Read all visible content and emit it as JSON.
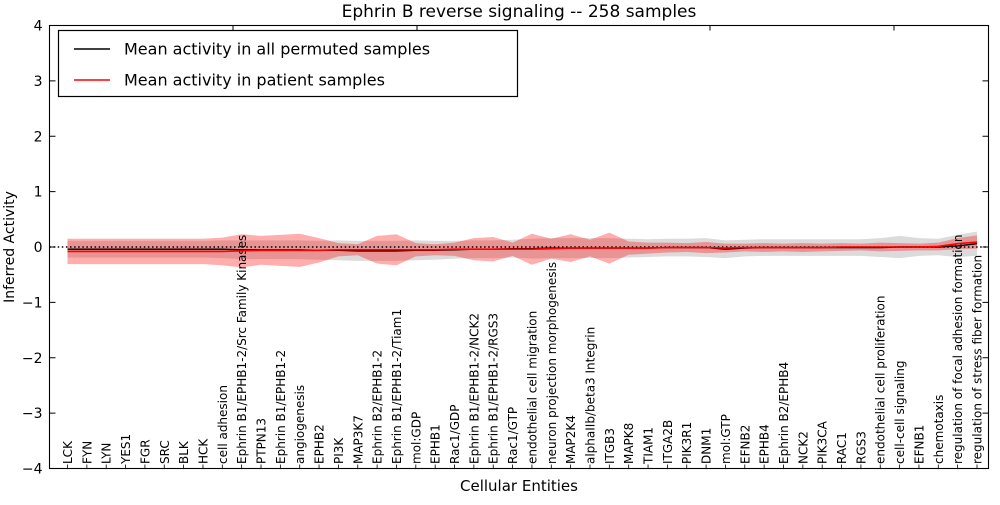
{
  "figure": {
    "background": "#ffffff"
  },
  "chart_data": {
    "type": "line",
    "title": "Ephrin B reverse signaling -- 258 samples",
    "xlabel": "Cellular Entities",
    "ylabel": "Inferred Activity",
    "ylim": [
      -4,
      4
    ],
    "y_tick_values": [
      4,
      3,
      2,
      1,
      0,
      -1,
      -2,
      -3,
      -4
    ],
    "y_tick_labels": [
      "4",
      "3",
      "2",
      "1",
      "0",
      "−1",
      "−2",
      "−3",
      "−4"
    ],
    "grid": false,
    "legend_position": "upper left",
    "reference_line": {
      "y": 0,
      "style": "dotted",
      "color": "#000000"
    },
    "categories": [
      "LCK",
      "FYN",
      "LYN",
      "YES1",
      "FGR",
      "SRC",
      "BLK",
      "HCK",
      "cell adhesion",
      "Ephrin B1/EPHB1-2/Src Family Kinases",
      "PTPN13",
      "Ephrin B1/EPHB1-2",
      "angiogenesis",
      "EPHB2",
      "PI3K",
      "MAP3K7",
      "Ephrin B2/EPHB1-2",
      "Ephrin B1/EPHB1-2/Tiam1",
      "mol:GDP",
      "EPHB1",
      "Rac1/GDP",
      "Ephrin B1/EPHB1-2/NCK2",
      "Ephrin B1/EPHB1-2/RGS3",
      "Rac1/GTP",
      "endothelial cell migration",
      "neuron projection morphogenesis",
      "MAP2K4",
      "alphaIIb/beta3 Integrin",
      "ITGB3",
      "MAPK8",
      "TIAM1",
      "ITGA2B",
      "PIK3R1",
      "DNM1",
      "mol:GTP",
      "EFNB2",
      "EPHB4",
      "Ephrin B2/EPHB4",
      "NCK2",
      "PIK3CA",
      "RAC1",
      "RGS3",
      "endothelial cell proliferation",
      "cell-cell signaling",
      "EFNB1",
      "chemotaxis",
      "regulation of focal adhesion formation",
      "regulation of stress fiber formation"
    ],
    "series": [
      {
        "name": "Mean activity in all permuted samples",
        "color": "#000000",
        "band_color": "#999999",
        "band_opacity": 0.35,
        "values": [
          -0.04,
          -0.04,
          -0.04,
          -0.04,
          -0.04,
          -0.04,
          -0.04,
          -0.04,
          -0.04,
          -0.05,
          -0.05,
          -0.05,
          -0.05,
          -0.06,
          -0.06,
          -0.07,
          -0.07,
          -0.07,
          -0.06,
          -0.06,
          -0.05,
          -0.04,
          -0.04,
          -0.03,
          -0.03,
          -0.02,
          -0.02,
          -0.02,
          -0.02,
          -0.02,
          -0.02,
          -0.01,
          -0.01,
          -0.01,
          -0.04,
          -0.02,
          -0.01,
          -0.01,
          -0.01,
          -0.01,
          -0.01,
          -0.01,
          -0.01,
          0.0,
          0.0,
          0.0,
          0.02,
          0.06
        ],
        "std": [
          0.15,
          0.15,
          0.15,
          0.15,
          0.15,
          0.15,
          0.15,
          0.15,
          0.16,
          0.17,
          0.17,
          0.17,
          0.17,
          0.17,
          0.18,
          0.18,
          0.18,
          0.18,
          0.18,
          0.17,
          0.16,
          0.16,
          0.16,
          0.16,
          0.18,
          0.18,
          0.18,
          0.18,
          0.18,
          0.17,
          0.16,
          0.16,
          0.16,
          0.17,
          0.16,
          0.15,
          0.15,
          0.15,
          0.15,
          0.15,
          0.15,
          0.15,
          0.17,
          0.2,
          0.16,
          0.15,
          0.2,
          0.22
        ]
      },
      {
        "name": "Mean activity in patient samples",
        "color": "#ff0000",
        "band_color": "#ff0000",
        "band_opacity": 0.32,
        "values": [
          -0.08,
          -0.08,
          -0.08,
          -0.08,
          -0.08,
          -0.08,
          -0.08,
          -0.08,
          -0.08,
          -0.07,
          -0.06,
          -0.06,
          -0.06,
          -0.06,
          -0.05,
          -0.05,
          -0.05,
          -0.05,
          -0.05,
          -0.05,
          -0.04,
          -0.04,
          -0.04,
          -0.04,
          -0.04,
          -0.03,
          -0.02,
          -0.02,
          -0.02,
          -0.02,
          -0.02,
          -0.01,
          -0.01,
          -0.01,
          -0.02,
          -0.01,
          -0.01,
          -0.01,
          -0.01,
          -0.01,
          0.0,
          0.0,
          0.0,
          0.0,
          0.0,
          0.01,
          0.06,
          0.09
        ],
        "std": [
          0.23,
          0.23,
          0.23,
          0.23,
          0.23,
          0.23,
          0.23,
          0.23,
          0.25,
          0.3,
          0.26,
          0.28,
          0.3,
          0.22,
          0.12,
          0.1,
          0.25,
          0.28,
          0.12,
          0.1,
          0.12,
          0.2,
          0.22,
          0.12,
          0.28,
          0.18,
          0.25,
          0.15,
          0.28,
          0.12,
          0.1,
          0.09,
          0.08,
          0.1,
          0.08,
          0.07,
          0.08,
          0.07,
          0.08,
          0.07,
          0.07,
          0.06,
          0.08,
          0.07,
          0.06,
          0.07,
          0.1,
          0.12
        ]
      }
    ]
  }
}
